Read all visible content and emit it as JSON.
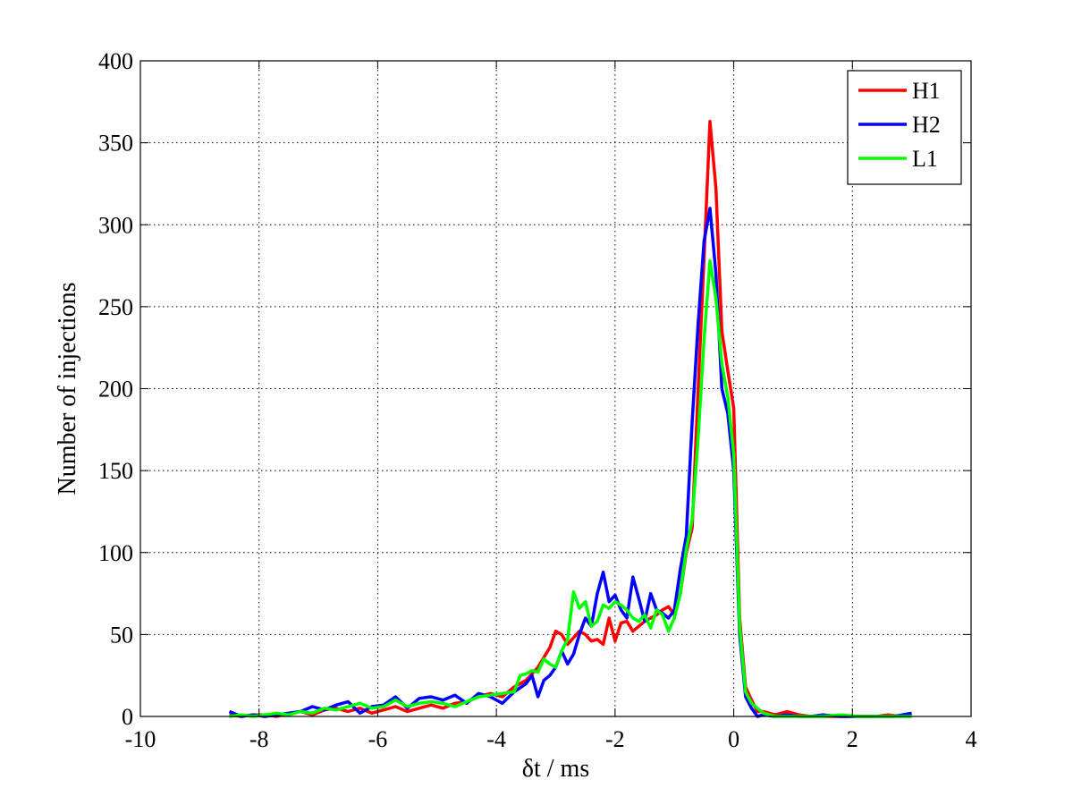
{
  "chart_data": {
    "type": "line",
    "title": "",
    "xlabel": "δt / ms",
    "ylabel": "Number of injections",
    "xlim": [
      -10,
      4
    ],
    "ylim": [
      0,
      400
    ],
    "xticks": [
      -10,
      -8,
      -6,
      -4,
      -2,
      0,
      2,
      4
    ],
    "yticks": [
      0,
      50,
      100,
      150,
      200,
      250,
      300,
      350,
      400
    ],
    "grid": true,
    "legend_position": "top-right",
    "series": [
      {
        "name": "H1",
        "color": "#ff0000",
        "points": [
          [
            -8.5,
            1
          ],
          [
            -8.3,
            0
          ],
          [
            -8.1,
            1
          ],
          [
            -7.9,
            1
          ],
          [
            -7.7,
            0
          ],
          [
            -7.5,
            2
          ],
          [
            -7.3,
            3
          ],
          [
            -7.1,
            1
          ],
          [
            -6.9,
            4
          ],
          [
            -6.7,
            5
          ],
          [
            -6.5,
            3
          ],
          [
            -6.3,
            5
          ],
          [
            -6.1,
            2
          ],
          [
            -5.9,
            4
          ],
          [
            -5.7,
            6
          ],
          [
            -5.5,
            3
          ],
          [
            -5.3,
            5
          ],
          [
            -5.1,
            7
          ],
          [
            -4.9,
            5
          ],
          [
            -4.7,
            8
          ],
          [
            -4.5,
            9
          ],
          [
            -4.3,
            12
          ],
          [
            -4.1,
            14
          ],
          [
            -3.9,
            12
          ],
          [
            -3.7,
            18
          ],
          [
            -3.5,
            22
          ],
          [
            -3.3,
            30
          ],
          [
            -3.1,
            42
          ],
          [
            -3.0,
            52
          ],
          [
            -2.9,
            50
          ],
          [
            -2.8,
            44
          ],
          [
            -2.7,
            48
          ],
          [
            -2.6,
            52
          ],
          [
            -2.5,
            50
          ],
          [
            -2.4,
            46
          ],
          [
            -2.3,
            47
          ],
          [
            -2.2,
            44
          ],
          [
            -2.1,
            60
          ],
          [
            -2.0,
            46
          ],
          [
            -1.9,
            57
          ],
          [
            -1.8,
            58
          ],
          [
            -1.7,
            52
          ],
          [
            -1.6,
            55
          ],
          [
            -1.5,
            58
          ],
          [
            -1.4,
            60
          ],
          [
            -1.3,
            62
          ],
          [
            -1.2,
            65
          ],
          [
            -1.1,
            67
          ],
          [
            -1.0,
            62
          ],
          [
            -0.9,
            75
          ],
          [
            -0.8,
            100
          ],
          [
            -0.7,
            115
          ],
          [
            -0.6,
            200
          ],
          [
            -0.5,
            280
          ],
          [
            -0.4,
            363
          ],
          [
            -0.3,
            322
          ],
          [
            -0.2,
            235
          ],
          [
            -0.1,
            211
          ],
          [
            0.0,
            188
          ],
          [
            0.1,
            60
          ],
          [
            0.2,
            18
          ],
          [
            0.3,
            10
          ],
          [
            0.4,
            3
          ],
          [
            0.5,
            3
          ],
          [
            0.7,
            1
          ],
          [
            0.9,
            3
          ],
          [
            1.1,
            1
          ],
          [
            1.3,
            0
          ],
          [
            1.5,
            0
          ],
          [
            1.8,
            0
          ],
          [
            2.1,
            0
          ],
          [
            2.4,
            0
          ],
          [
            2.6,
            1
          ],
          [
            2.8,
            0
          ],
          [
            3.0,
            1
          ]
        ]
      },
      {
        "name": "H2",
        "color": "#0000ff",
        "points": [
          [
            -8.5,
            3
          ],
          [
            -8.3,
            0
          ],
          [
            -8.1,
            1
          ],
          [
            -7.9,
            0
          ],
          [
            -7.7,
            1
          ],
          [
            -7.5,
            2
          ],
          [
            -7.3,
            3
          ],
          [
            -7.1,
            6
          ],
          [
            -6.9,
            4
          ],
          [
            -6.7,
            7
          ],
          [
            -6.5,
            9
          ],
          [
            -6.3,
            2
          ],
          [
            -6.1,
            6
          ],
          [
            -5.9,
            7
          ],
          [
            -5.7,
            12
          ],
          [
            -5.5,
            5
          ],
          [
            -5.3,
            11
          ],
          [
            -5.1,
            12
          ],
          [
            -4.9,
            10
          ],
          [
            -4.7,
            13
          ],
          [
            -4.5,
            8
          ],
          [
            -4.3,
            14
          ],
          [
            -4.1,
            12
          ],
          [
            -3.9,
            8
          ],
          [
            -3.7,
            15
          ],
          [
            -3.5,
            20
          ],
          [
            -3.4,
            25
          ],
          [
            -3.3,
            12
          ],
          [
            -3.2,
            22
          ],
          [
            -3.1,
            25
          ],
          [
            -3.0,
            30
          ],
          [
            -2.9,
            40
          ],
          [
            -2.8,
            32
          ],
          [
            -2.7,
            38
          ],
          [
            -2.6,
            50
          ],
          [
            -2.5,
            60
          ],
          [
            -2.4,
            55
          ],
          [
            -2.3,
            75
          ],
          [
            -2.2,
            88
          ],
          [
            -2.1,
            70
          ],
          [
            -2.0,
            74
          ],
          [
            -1.9,
            65
          ],
          [
            -1.8,
            60
          ],
          [
            -1.7,
            85
          ],
          [
            -1.6,
            72
          ],
          [
            -1.5,
            58
          ],
          [
            -1.4,
            75
          ],
          [
            -1.3,
            65
          ],
          [
            -1.2,
            63
          ],
          [
            -1.1,
            60
          ],
          [
            -1.0,
            65
          ],
          [
            -0.9,
            90
          ],
          [
            -0.8,
            110
          ],
          [
            -0.7,
            180
          ],
          [
            -0.6,
            240
          ],
          [
            -0.5,
            290
          ],
          [
            -0.4,
            310
          ],
          [
            -0.3,
            270
          ],
          [
            -0.2,
            200
          ],
          [
            -0.1,
            185
          ],
          [
            0.0,
            150
          ],
          [
            0.1,
            50
          ],
          [
            0.2,
            12
          ],
          [
            0.3,
            5
          ],
          [
            0.4,
            0
          ],
          [
            0.5,
            1
          ],
          [
            0.7,
            0
          ],
          [
            0.9,
            1
          ],
          [
            1.1,
            0
          ],
          [
            1.3,
            0
          ],
          [
            1.5,
            1
          ],
          [
            1.8,
            0
          ],
          [
            2.1,
            0
          ],
          [
            2.4,
            0
          ],
          [
            2.7,
            0
          ],
          [
            3.0,
            2
          ]
        ]
      },
      {
        "name": "L1",
        "color": "#00ff00",
        "points": [
          [
            -8.5,
            0
          ],
          [
            -8.3,
            1
          ],
          [
            -8.1,
            0
          ],
          [
            -7.9,
            1
          ],
          [
            -7.7,
            2
          ],
          [
            -7.5,
            1
          ],
          [
            -7.3,
            3
          ],
          [
            -7.1,
            2
          ],
          [
            -6.9,
            5
          ],
          [
            -6.7,
            4
          ],
          [
            -6.5,
            6
          ],
          [
            -6.3,
            8
          ],
          [
            -6.1,
            5
          ],
          [
            -5.9,
            6
          ],
          [
            -5.7,
            10
          ],
          [
            -5.5,
            6
          ],
          [
            -5.3,
            8
          ],
          [
            -5.1,
            9
          ],
          [
            -4.9,
            8
          ],
          [
            -4.7,
            6
          ],
          [
            -4.5,
            9
          ],
          [
            -4.3,
            12
          ],
          [
            -4.1,
            13
          ],
          [
            -3.9,
            14
          ],
          [
            -3.7,
            15
          ],
          [
            -3.6,
            25
          ],
          [
            -3.5,
            26
          ],
          [
            -3.4,
            28
          ],
          [
            -3.3,
            27
          ],
          [
            -3.2,
            35
          ],
          [
            -3.1,
            32
          ],
          [
            -3.0,
            30
          ],
          [
            -2.9,
            40
          ],
          [
            -2.8,
            47
          ],
          [
            -2.7,
            76
          ],
          [
            -2.6,
            66
          ],
          [
            -2.5,
            70
          ],
          [
            -2.4,
            55
          ],
          [
            -2.3,
            58
          ],
          [
            -2.2,
            68
          ],
          [
            -2.1,
            66
          ],
          [
            -2.0,
            70
          ],
          [
            -1.9,
            68
          ],
          [
            -1.8,
            65
          ],
          [
            -1.7,
            60
          ],
          [
            -1.6,
            58
          ],
          [
            -1.5,
            62
          ],
          [
            -1.4,
            54
          ],
          [
            -1.3,
            65
          ],
          [
            -1.2,
            62
          ],
          [
            -1.1,
            52
          ],
          [
            -1.0,
            60
          ],
          [
            -0.9,
            75
          ],
          [
            -0.8,
            102
          ],
          [
            -0.7,
            120
          ],
          [
            -0.6,
            170
          ],
          [
            -0.5,
            230
          ],
          [
            -0.4,
            278
          ],
          [
            -0.3,
            255
          ],
          [
            -0.2,
            215
          ],
          [
            -0.1,
            195
          ],
          [
            0.0,
            160
          ],
          [
            0.1,
            55
          ],
          [
            0.2,
            15
          ],
          [
            0.3,
            8
          ],
          [
            0.4,
            5
          ],
          [
            0.5,
            2
          ],
          [
            0.7,
            0
          ],
          [
            0.9,
            0
          ],
          [
            1.2,
            0
          ],
          [
            1.5,
            0
          ],
          [
            1.8,
            1
          ],
          [
            2.1,
            0
          ],
          [
            2.5,
            0
          ],
          [
            3.0,
            0
          ]
        ]
      }
    ]
  }
}
